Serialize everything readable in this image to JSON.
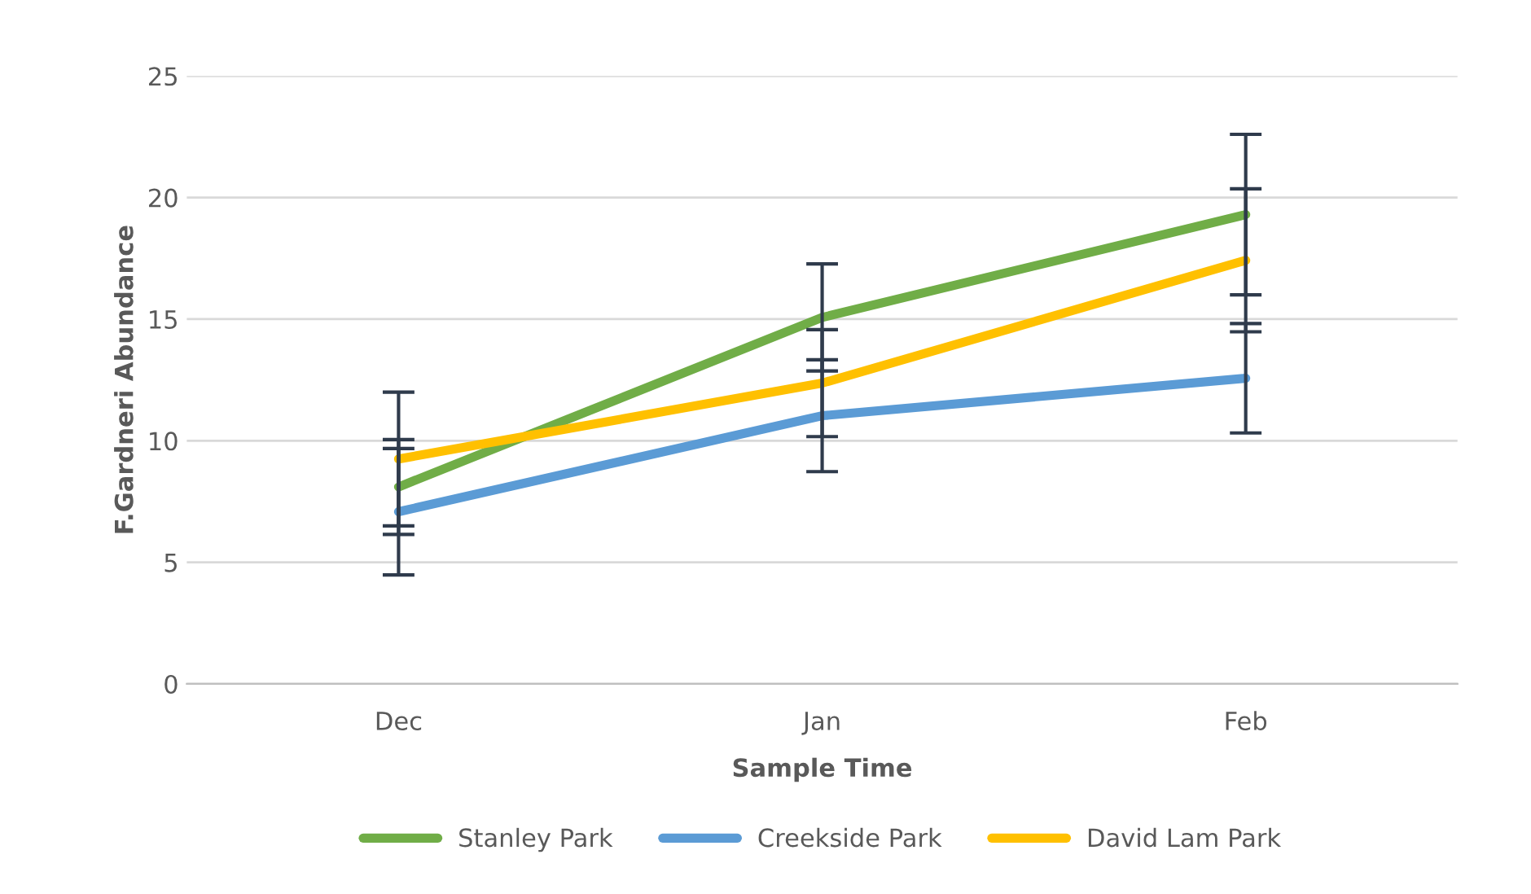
{
  "chart_data": {
    "type": "line",
    "xlabel": "Sample Time",
    "ylabel": "F.Gardneri Abundance",
    "categories": [
      "Dec",
      "Jan",
      "Feb"
    ],
    "series": [
      {
        "name": "Stanley Park",
        "color": "#70ad47",
        "values": [
          8.1,
          15.07,
          19.3
        ],
        "errors": [
          1.95,
          2.2,
          3.3
        ]
      },
      {
        "name": "Creekside Park",
        "color": "#5b9bd5",
        "values": [
          7.08,
          11.03,
          12.57
        ],
        "errors": [
          2.6,
          2.3,
          2.25
        ]
      },
      {
        "name": "David Lam Park",
        "color": "#ffc000",
        "values": [
          9.25,
          12.37,
          17.42
        ],
        "errors": [
          2.75,
          2.2,
          2.94
        ]
      }
    ],
    "ylim": [
      0,
      25
    ],
    "yticks": [
      0,
      5,
      10,
      15,
      20,
      25
    ],
    "grid": "y",
    "legend": "bottom",
    "marker": "none",
    "line_style": "solid"
  }
}
